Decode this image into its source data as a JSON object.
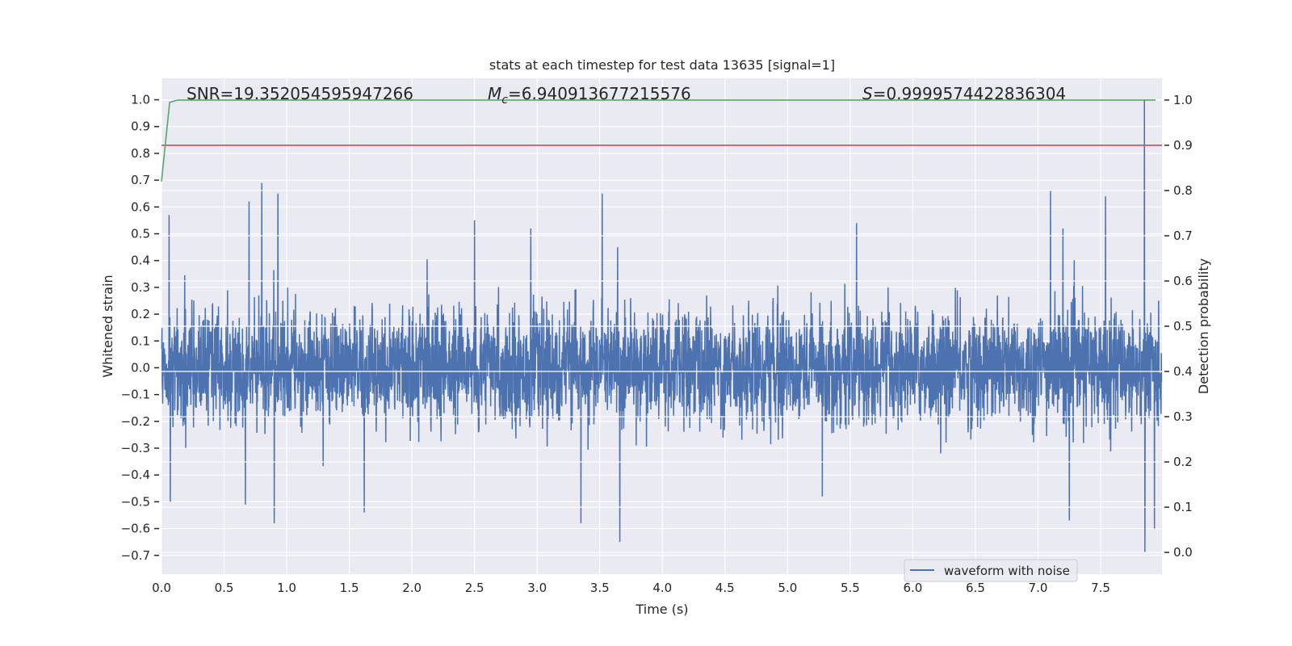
{
  "chart_data": {
    "type": "line",
    "title": "stats at each timestep for test data 13635 [signal=1]",
    "xlabel": "Time (s)",
    "ylabel": "Whitened strain",
    "ylabel_right": "Detection probability",
    "xlim": [
      0,
      7.99
    ],
    "ylim": [
      -0.77,
      1.08
    ],
    "ylim_right": [
      -0.048,
      1.048
    ],
    "grid": true,
    "xticks": [
      "0.0",
      "0.5",
      "1.0",
      "1.5",
      "2.0",
      "2.5",
      "3.0",
      "3.5",
      "4.0",
      "4.5",
      "5.0",
      "5.5",
      "6.0",
      "6.5",
      "7.0",
      "7.5"
    ],
    "yticks": [
      "1.0",
      "0.9",
      "0.8",
      "0.7",
      "0.6",
      "0.5",
      "0.4",
      "0.3",
      "0.2",
      "0.1",
      "0.0",
      "−0.1",
      "−0.2",
      "−0.3",
      "−0.4",
      "−0.5",
      "−0.6",
      "−0.7"
    ],
    "yticks_right": [
      "1.0",
      "0.9",
      "0.8",
      "0.7",
      "0.6",
      "0.5",
      "0.4",
      "0.3",
      "0.2",
      "0.1",
      "0.0"
    ],
    "annotations": {
      "snr": "SNR=19.352054595947266",
      "mc_symbol": "M",
      "mc_sub": "c",
      "mc_value": "=6.940913677215576",
      "s_symbol": "S",
      "s_value": "=0.9999574422836304"
    },
    "legend": {
      "placement": "lower-right",
      "entries": [
        "waveform with noise"
      ]
    },
    "series": [
      {
        "name": "waveform with noise",
        "axis": "left",
        "color": "#4c72b0",
        "kind": "noise",
        "sample_rate_hz": 512,
        "duration_s": 7.99,
        "noise_std": 0.105,
        "spikes": [
          {
            "t": 0.06,
            "v": 0.57
          },
          {
            "t": 0.07,
            "v": -0.5
          },
          {
            "t": 0.67,
            "v": -0.51
          },
          {
            "t": 0.7,
            "v": 0.62
          },
          {
            "t": 0.8,
            "v": 0.69
          },
          {
            "t": 0.9,
            "v": -0.58
          },
          {
            "t": 0.93,
            "v": 0.65
          },
          {
            "t": 1.62,
            "v": -0.54
          },
          {
            "t": 2.5,
            "v": 0.55
          },
          {
            "t": 2.95,
            "v": 0.52
          },
          {
            "t": 3.35,
            "v": -0.58
          },
          {
            "t": 3.52,
            "v": 0.65
          },
          {
            "t": 3.66,
            "v": -0.65
          },
          {
            "t": 5.55,
            "v": 0.54
          },
          {
            "t": 7.1,
            "v": 0.66
          },
          {
            "t": 7.2,
            "v": 0.52
          },
          {
            "t": 7.25,
            "v": -0.57
          },
          {
            "t": 7.54,
            "v": 0.64
          },
          {
            "t": 7.85,
            "v": 1.0
          },
          {
            "t": 7.853,
            "v": -0.69
          },
          {
            "t": 7.93,
            "v": -0.6
          }
        ]
      },
      {
        "name": "detection probability",
        "axis": "right",
        "color": "#55a868",
        "x": [
          0.0,
          0.065,
          0.13,
          7.94
        ],
        "y": [
          0.82,
          0.995,
          1.0,
          1.0
        ]
      },
      {
        "name": "threshold",
        "axis": "right",
        "color": "#c44e52",
        "x": [
          0.0,
          7.99
        ],
        "y": [
          0.9,
          0.9
        ]
      }
    ]
  }
}
